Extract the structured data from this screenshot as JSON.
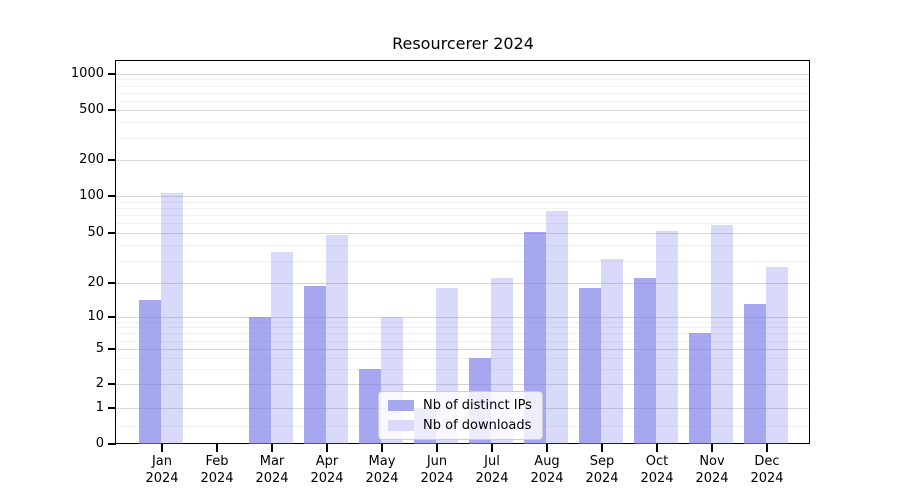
{
  "figure": {
    "background": "#ffffff"
  },
  "chart_data": {
    "type": "bar",
    "title": "Resourcerer 2024",
    "categories": [
      "Jan 2024",
      "Feb 2024",
      "Mar 2024",
      "Apr 2024",
      "May 2024",
      "Jun 2024",
      "Jul 2024",
      "Aug 2024",
      "Sep 2024",
      "Oct 2024",
      "Nov 2024",
      "Dec 2024"
    ],
    "series": [
      {
        "name": "Nb of distinct IPs",
        "color": "#a7a7ee",
        "rgba": "rgba(120,120,232,0.65)",
        "values": [
          14,
          0,
          10,
          19,
          3,
          1,
          4,
          51,
          18,
          22,
          7,
          13
        ]
      },
      {
        "name": "Nb of downloads",
        "color": "#d9d9f9",
        "rgba": "rgba(120,120,232,0.28)",
        "values": [
          105,
          0,
          35,
          48,
          10,
          18,
          22,
          75,
          31,
          52,
          58,
          27
        ]
      }
    ],
    "y_axis": {
      "ticks": [
        0,
        1,
        2,
        5,
        10,
        20,
        50,
        100,
        200,
        500,
        1000
      ],
      "scale": "symlog",
      "range": [
        0,
        1000
      ]
    },
    "x_axis": {
      "tick_labels_two_lines": true
    },
    "legend": {
      "position": "lower-center-inside",
      "items": [
        "Nb of distinct IPs",
        "Nb of downloads"
      ]
    },
    "grid": "on"
  }
}
